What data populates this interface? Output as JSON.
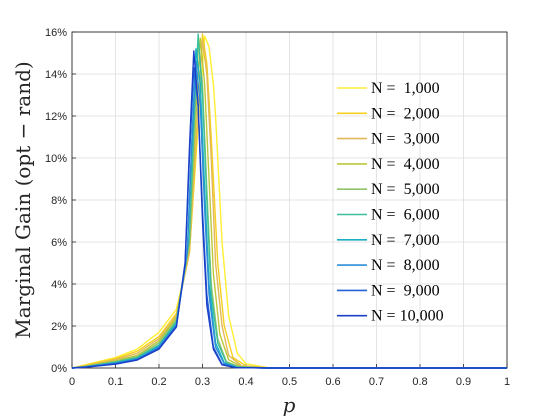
{
  "chart_data": {
    "type": "line",
    "xlabel": "p",
    "ylabel": "Marginal Gain (opt − rand)",
    "xlim": [
      0,
      1
    ],
    "ylim": [
      0,
      16
    ],
    "xticks": [
      "0",
      "0.1",
      "0.2",
      "0.3",
      "0.4",
      "0.5",
      "0.6",
      "0.7",
      "0.8",
      "0.9",
      "1"
    ],
    "yticks": [
      "0%",
      "2%",
      "4%",
      "6%",
      "8%",
      "10%",
      "12%",
      "14%",
      "16%"
    ],
    "grid": true,
    "legend_position": "right",
    "series": [
      {
        "name": "N =  1,000",
        "color": "#ffee33",
        "peak_x": 0.305,
        "peak_y": 15.8,
        "width": 0.045,
        "points": [
          [
            0,
            0
          ],
          [
            0.03,
            0.15
          ],
          [
            0.1,
            0.5
          ],
          [
            0.15,
            0.9
          ],
          [
            0.2,
            1.7
          ],
          [
            0.24,
            2.8
          ],
          [
            0.27,
            5.5
          ],
          [
            0.29,
            11.5
          ],
          [
            0.305,
            15.8
          ],
          [
            0.315,
            15.3
          ],
          [
            0.325,
            13.5
          ],
          [
            0.33,
            12
          ],
          [
            0.345,
            6
          ],
          [
            0.36,
            2.5
          ],
          [
            0.38,
            0.7
          ],
          [
            0.4,
            0.2
          ],
          [
            0.45,
            0.02
          ],
          [
            1,
            0
          ]
        ]
      },
      {
        "name": "N =  2,000",
        "color": "#f5d020",
        "peak_x": 0.3,
        "peak_y": 15.9,
        "width": 0.04,
        "points": [
          [
            0,
            0
          ],
          [
            0.03,
            0.12
          ],
          [
            0.1,
            0.45
          ],
          [
            0.15,
            0.8
          ],
          [
            0.2,
            1.5
          ],
          [
            0.24,
            2.6
          ],
          [
            0.27,
            5.5
          ],
          [
            0.29,
            12
          ],
          [
            0.3,
            15.9
          ],
          [
            0.31,
            14.5
          ],
          [
            0.32,
            11
          ],
          [
            0.335,
            5
          ],
          [
            0.35,
            2
          ],
          [
            0.37,
            0.5
          ],
          [
            0.4,
            0.1
          ],
          [
            0.45,
            0.01
          ],
          [
            1,
            0
          ]
        ]
      },
      {
        "name": "N =  3,000",
        "color": "#e3b85a",
        "peak_x": 0.3,
        "peak_y": 15.6,
        "width": 0.038,
        "points": [
          [
            0,
            0
          ],
          [
            0.03,
            0.1
          ],
          [
            0.1,
            0.4
          ],
          [
            0.15,
            0.7
          ],
          [
            0.2,
            1.4
          ],
          [
            0.24,
            2.5
          ],
          [
            0.27,
            5.5
          ],
          [
            0.29,
            12.5
          ],
          [
            0.3,
            15.6
          ],
          [
            0.31,
            14
          ],
          [
            0.32,
            10
          ],
          [
            0.33,
            5
          ],
          [
            0.345,
            2
          ],
          [
            0.36,
            0.6
          ],
          [
            0.39,
            0.1
          ],
          [
            0.45,
            0.01
          ],
          [
            1,
            0
          ]
        ]
      },
      {
        "name": "N =  4,000",
        "color": "#bcc83a",
        "peak_x": 0.295,
        "peak_y": 15.7,
        "width": 0.035,
        "points": [
          [
            0,
            0
          ],
          [
            0.03,
            0.08
          ],
          [
            0.1,
            0.35
          ],
          [
            0.15,
            0.6
          ],
          [
            0.2,
            1.3
          ],
          [
            0.24,
            2.4
          ],
          [
            0.27,
            5.8
          ],
          [
            0.285,
            12
          ],
          [
            0.295,
            15.7
          ],
          [
            0.305,
            13.5
          ],
          [
            0.315,
            9
          ],
          [
            0.325,
            4.5
          ],
          [
            0.34,
            1.6
          ],
          [
            0.36,
            0.4
          ],
          [
            0.39,
            0.06
          ],
          [
            0.45,
            0
          ],
          [
            1,
            0
          ]
        ]
      },
      {
        "name": "N =  5,000",
        "color": "#8ec46b",
        "peak_x": 0.29,
        "peak_y": 15.5,
        "width": 0.033,
        "points": [
          [
            0,
            0
          ],
          [
            0.03,
            0.07
          ],
          [
            0.1,
            0.3
          ],
          [
            0.15,
            0.55
          ],
          [
            0.2,
            1.2
          ],
          [
            0.24,
            2.3
          ],
          [
            0.27,
            6
          ],
          [
            0.28,
            11
          ],
          [
            0.29,
            15.5
          ],
          [
            0.3,
            13.5
          ],
          [
            0.31,
            8.5
          ],
          [
            0.32,
            4
          ],
          [
            0.335,
            1.4
          ],
          [
            0.355,
            0.3
          ],
          [
            0.385,
            0.05
          ],
          [
            0.45,
            0
          ],
          [
            1,
            0
          ]
        ]
      },
      {
        "name": "N =  6,000",
        "color": "#3cbf9a",
        "peak_x": 0.29,
        "peak_y": 15.9,
        "width": 0.032,
        "points": [
          [
            0,
            0
          ],
          [
            0.03,
            0.06
          ],
          [
            0.1,
            0.28
          ],
          [
            0.15,
            0.5
          ],
          [
            0.2,
            1.1
          ],
          [
            0.24,
            2.2
          ],
          [
            0.27,
            6.2
          ],
          [
            0.28,
            11.5
          ],
          [
            0.29,
            15.9
          ],
          [
            0.3,
            13
          ],
          [
            0.31,
            8
          ],
          [
            0.32,
            3.5
          ],
          [
            0.335,
            1.2
          ],
          [
            0.355,
            0.25
          ],
          [
            0.38,
            0.04
          ],
          [
            0.45,
            0
          ],
          [
            1,
            0
          ]
        ]
      },
      {
        "name": "N =  7,000",
        "color": "#1aafc0",
        "peak_x": 0.285,
        "peak_y": 15.2,
        "width": 0.03,
        "points": [
          [
            0,
            0
          ],
          [
            0.03,
            0.05
          ],
          [
            0.1,
            0.25
          ],
          [
            0.15,
            0.45
          ],
          [
            0.2,
            1.05
          ],
          [
            0.24,
            2.1
          ],
          [
            0.265,
            5.5
          ],
          [
            0.275,
            10.5
          ],
          [
            0.285,
            15.2
          ],
          [
            0.295,
            13.5
          ],
          [
            0.305,
            8.5
          ],
          [
            0.315,
            4
          ],
          [
            0.33,
            1.2
          ],
          [
            0.35,
            0.25
          ],
          [
            0.38,
            0.03
          ],
          [
            0.45,
            0
          ],
          [
            1,
            0
          ]
        ]
      },
      {
        "name": "N =  8,000",
        "color": "#2d8fd8",
        "peak_x": 0.285,
        "peak_y": 14.6,
        "width": 0.029,
        "points": [
          [
            0,
            0
          ],
          [
            0.03,
            0.05
          ],
          [
            0.1,
            0.23
          ],
          [
            0.15,
            0.42
          ],
          [
            0.2,
            1
          ],
          [
            0.24,
            2.05
          ],
          [
            0.265,
            5.5
          ],
          [
            0.275,
            10.5
          ],
          [
            0.285,
            14.6
          ],
          [
            0.295,
            12.5
          ],
          [
            0.305,
            7.5
          ],
          [
            0.315,
            3.5
          ],
          [
            0.33,
            1
          ],
          [
            0.35,
            0.2
          ],
          [
            0.38,
            0.02
          ],
          [
            0.45,
            0
          ],
          [
            1,
            0
          ]
        ]
      },
      {
        "name": "N =  9,000",
        "color": "#2563d9",
        "peak_x": 0.28,
        "peak_y": 14.3,
        "width": 0.028,
        "points": [
          [
            0,
            0
          ],
          [
            0.03,
            0.04
          ],
          [
            0.1,
            0.2
          ],
          [
            0.15,
            0.4
          ],
          [
            0.2,
            0.95
          ],
          [
            0.24,
            2
          ],
          [
            0.26,
            5
          ],
          [
            0.27,
            10
          ],
          [
            0.28,
            14.3
          ],
          [
            0.29,
            12.5
          ],
          [
            0.3,
            7.5
          ],
          [
            0.31,
            3.5
          ],
          [
            0.325,
            1
          ],
          [
            0.345,
            0.18
          ],
          [
            0.375,
            0.02
          ],
          [
            0.45,
            0
          ],
          [
            1,
            0
          ]
        ]
      },
      {
        "name": "N = 10,000",
        "color": "#1a3fc8",
        "peak_x": 0.28,
        "peak_y": 15.1,
        "width": 0.027,
        "points": [
          [
            0,
            0
          ],
          [
            0.03,
            0.04
          ],
          [
            0.1,
            0.18
          ],
          [
            0.15,
            0.38
          ],
          [
            0.2,
            0.9
          ],
          [
            0.24,
            1.95
          ],
          [
            0.26,
            5
          ],
          [
            0.27,
            10.5
          ],
          [
            0.28,
            15.1
          ],
          [
            0.29,
            12.5
          ],
          [
            0.3,
            7
          ],
          [
            0.31,
            3
          ],
          [
            0.325,
            0.9
          ],
          [
            0.345,
            0.15
          ],
          [
            0.375,
            0.02
          ],
          [
            0.45,
            0
          ],
          [
            1,
            0
          ]
        ]
      }
    ]
  }
}
